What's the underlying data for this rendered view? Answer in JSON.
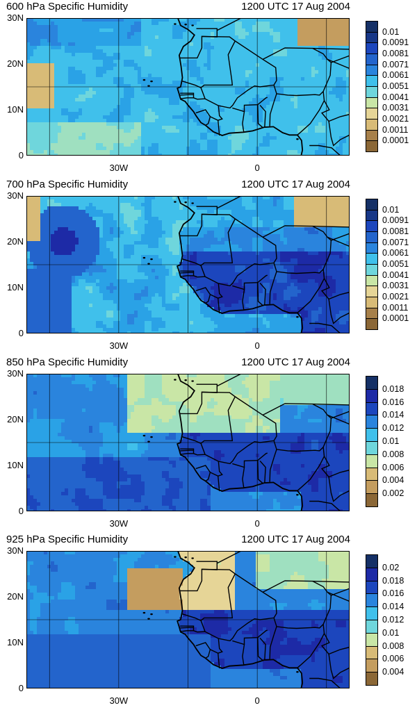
{
  "panels": [
    {
      "title": "600 hPa Specific Humidity",
      "time": "1200 UTC 17 Aug 2004",
      "colorbar": [
        "0.01",
        "0.0091",
        "0.0081",
        "0.0071",
        "0.0061",
        "0.0051",
        "0.0041",
        "0.0031",
        "0.0021",
        "0.0011",
        "0.0001"
      ]
    },
    {
      "title": "700 hPa Specific Humidity",
      "time": "1200 UTC 17 Aug 2004",
      "colorbar": [
        "0.01",
        "0.0091",
        "0.0081",
        "0.0071",
        "0.0061",
        "0.0051",
        "0.0041",
        "0.0031",
        "0.0021",
        "0.0011",
        "0.0001"
      ]
    },
    {
      "title": "850 hPa Specific Humidity",
      "time": "1200 UTC 17 Aug 2004",
      "colorbar": [
        "0.018",
        "0.016",
        "0.014",
        "0.012",
        "0.01",
        "0.008",
        "0.006",
        "0.004",
        "0.002"
      ]
    },
    {
      "title": "925 hPa Specific Humidity",
      "time": "1200 UTC 17 Aug 2004",
      "colorbar": [
        "0.02",
        "0.018",
        "0.016",
        "0.014",
        "0.012",
        "0.01",
        "0.008",
        "0.006",
        "0.004"
      ]
    }
  ],
  "lat_labels": [
    "30N",
    "20N",
    "10N",
    "0"
  ],
  "lon_labels": [
    "30W",
    "0"
  ],
  "colors": {
    "scale": [
      "#8b6736",
      "#a7804a",
      "#c49d5f",
      "#d8bb77",
      "#e6d597",
      "#c9e6a6",
      "#9fe0c0",
      "#6fd6dc",
      "#40c0eb",
      "#2aa2e6",
      "#2a84dd",
      "#2364cc",
      "#1c46bd",
      "#1d2aa6",
      "#173787",
      "#153066"
    ]
  }
}
